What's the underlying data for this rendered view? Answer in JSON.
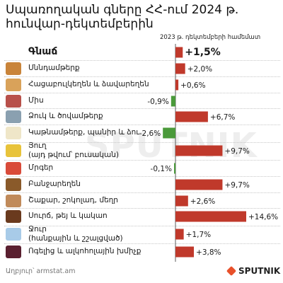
{
  "title": "Սպառողական գները ՀՀ-ում 2024 թ. հունվար-դեկտեմբերին",
  "subhead": "2023 թ. դեկտեմբերի համեմատ",
  "source": "Աղբյուր՝ armstat.am",
  "brand": "SPUTNIK",
  "colors": {
    "positive": "#c0392b",
    "negative": "#4a9a3a",
    "axis": "#333333"
  },
  "chart_data": {
    "type": "bar",
    "orientation": "horizontal",
    "unit": "%",
    "categories": [
      "Գնաճ",
      "Սննդամթերք",
      "Հացաբուլկեղեն և ձավարեղեն",
      "Միս",
      "Ձուկ և ծովամթերք",
      "Կաթնամթերք, պանիր և ձու",
      "Յուղ",
      "Մրգեր",
      "Բանջարեղեն",
      "Շաքար, շոկոլադ, մեղր",
      "Սուրճ, թեյ և կակաո",
      "Ջուր",
      "Ոգելից և ալկոհոլային խմիչք"
    ],
    "sublabels": [
      "",
      "",
      "",
      "",
      "",
      "",
      "(այդ թվում՝ բուսական)",
      "",
      "",
      "",
      "",
      "(հանքային և շշալցված)",
      ""
    ],
    "values": [
      1.5,
      2.0,
      0.6,
      -0.9,
      6.7,
      -2.6,
      9.7,
      -0.1,
      9.7,
      2.6,
      14.6,
      1.7,
      3.8
    ],
    "value_labels": [
      "+1,5%",
      "+2,0%",
      "+0,6%",
      "-0,9%",
      "+6,7%",
      "-2,6%",
      "+9,7%",
      "-0,1%",
      "+9,7%",
      "+2,6%",
      "+14,6%",
      "+1,7%",
      "+3,8%"
    ],
    "icons": [
      "",
      "bread-basket-icon",
      "bread-icon",
      "meat-icon",
      "fish-icon",
      "dairy-icon",
      "oil-bottle-icon",
      "fruit-icon",
      "vegetable-icon",
      "sugar-icon",
      "coffee-icon",
      "water-icon",
      "wine-icon"
    ],
    "xlim": [
      -3,
      15
    ]
  }
}
